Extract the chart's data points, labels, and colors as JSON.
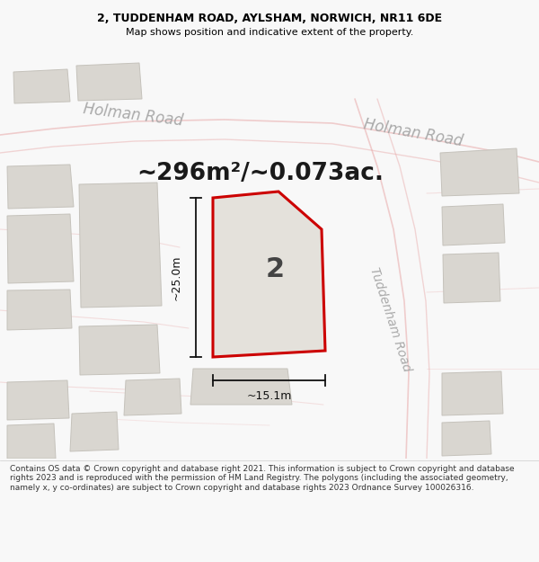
{
  "title_line1": "2, TUDDENHAM ROAD, AYLSHAM, NORWICH, NR11 6DE",
  "title_line2": "Map shows position and indicative extent of the property.",
  "area_label": "~296m²/~0.073ac.",
  "property_number": "2",
  "measure_vertical": "~25.0m",
  "measure_horizontal": "~15.1m",
  "road_label_top_left": "Holman Road",
  "road_label_top_right": "Holman Road",
  "road_label_right": "Tuddenham Road",
  "footer_text": "Contains OS data © Crown copyright and database right 2021. This information is subject to Crown copyright and database rights 2023 and is reproduced with the permission of HM Land Registry. The polygons (including the associated geometry, namely x, y co-ordinates) are subject to Crown copyright and database rights 2023 Ordnance Survey 100026316.",
  "bg_color": "#f2f0ed",
  "map_bg_color": "#f2f0ed",
  "building_color": "#d9d6d0",
  "building_edge_color": "#c5c2bb",
  "property_fill": "#e4e1db",
  "property_edge_color": "#cc0000",
  "road_line_color": "#e8a8a8",
  "road_fill_color": "#f8f5f2",
  "dim_line_color": "#111111",
  "title_bg": "#f8f8f8",
  "footer_bg": "#ffffff",
  "text_color": "#222222",
  "road_text_color": "#aaaaaa"
}
